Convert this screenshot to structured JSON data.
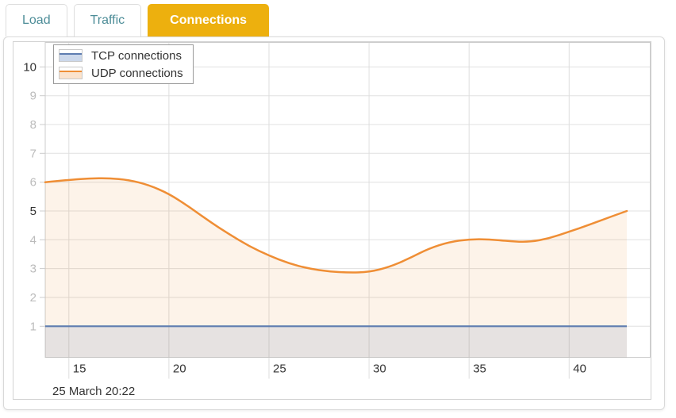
{
  "tabs": [
    {
      "label": "Load",
      "active": false
    },
    {
      "label": "Traffic",
      "active": false
    },
    {
      "label": "Connections",
      "active": true
    }
  ],
  "tab_colors": {
    "active_bg": "#edb00e",
    "active_text": "#ffffff",
    "inactive_text": "#4d8d98"
  },
  "legend": [
    {
      "label": "TCP connections",
      "line_color": "#5d7cb0",
      "fill_color": "#ccd8eb"
    },
    {
      "label": "UDP connections",
      "line_color": "#ef8e35",
      "fill_color": "#fbe3cd"
    }
  ],
  "chart_data": {
    "type": "area",
    "title": "",
    "xlabel": "",
    "ylabel": "",
    "date_label": "25 March 20:22",
    "xlim": [
      13.82,
      44.05
    ],
    "ylim": [
      -0.08,
      10.85
    ],
    "grid": true,
    "legend_position": "top-left",
    "xticks": [
      {
        "v": 15,
        "label": "15"
      },
      {
        "v": 20,
        "label": "20"
      },
      {
        "v": 25,
        "label": "25"
      },
      {
        "v": 30,
        "label": "30"
      },
      {
        "v": 35,
        "label": "35"
      },
      {
        "v": 40,
        "label": "40"
      }
    ],
    "yticks": [
      {
        "v": 1,
        "label": "1",
        "major": false
      },
      {
        "v": 2,
        "label": "2",
        "major": false
      },
      {
        "v": 3,
        "label": "3",
        "major": false
      },
      {
        "v": 4,
        "label": "4",
        "major": false
      },
      {
        "v": 5,
        "label": "5",
        "major": true
      },
      {
        "v": 6,
        "label": "6",
        "major": false
      },
      {
        "v": 7,
        "label": "7",
        "major": false
      },
      {
        "v": 8,
        "label": "8",
        "major": false
      },
      {
        "v": 9,
        "label": "9",
        "major": false
      },
      {
        "v": 10,
        "label": "10",
        "major": true
      }
    ],
    "x": [
      13.82,
      15,
      16,
      17,
      18,
      19,
      20,
      21,
      22,
      23,
      24,
      25,
      26,
      27,
      28,
      29,
      30,
      31,
      32,
      33,
      34,
      35,
      36,
      37,
      38,
      39,
      40,
      41,
      42,
      42.88
    ],
    "series": [
      {
        "name": "TCP connections",
        "line_color": "#5d7cb0",
        "fill_rgba": "rgba(93,124,176,0.14)",
        "values": [
          1,
          1,
          1,
          1,
          1,
          1,
          1,
          1,
          1,
          1,
          1,
          1,
          1,
          1,
          1,
          1,
          1,
          1,
          1,
          1,
          1,
          1,
          1,
          1,
          1,
          1,
          1,
          1,
          1,
          1
        ]
      },
      {
        "name": "UDP connections",
        "line_color": "#ef8e35",
        "fill_rgba": "rgba(239,142,53,0.11)",
        "values": [
          6.0,
          6.08,
          6.13,
          6.14,
          6.08,
          5.9,
          5.6,
          5.15,
          4.65,
          4.2,
          3.78,
          3.45,
          3.18,
          3.0,
          2.9,
          2.86,
          2.88,
          3.05,
          3.35,
          3.7,
          3.92,
          4.02,
          4.02,
          3.95,
          3.92,
          4.05,
          4.28,
          4.52,
          4.78,
          5.0
        ]
      }
    ],
    "grid_color_h": "#e0e0e0",
    "grid_color_v": "#dedede",
    "axis_color": "#cccccc",
    "tick_label_major_color": "#333333",
    "tick_label_minor_color": "#bbbbbb",
    "xtick_label_color": "#333333"
  }
}
